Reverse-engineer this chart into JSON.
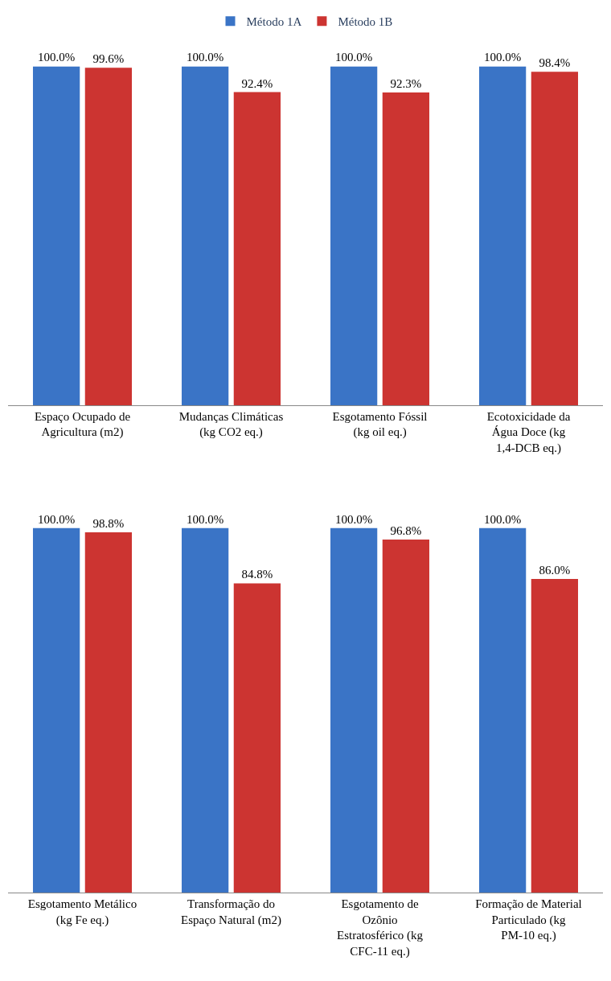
{
  "chart_data": [
    {
      "type": "bar",
      "categories": [
        "Espaço Ocupado de Agricultura (m2)",
        "Mudanças Climáticas (kg CO2 eq.)",
        "Esgotamento Fóssil (kg oil eq.)",
        "Ecotoxicidade da Água Doce (kg 1,4-DCB eq.)"
      ],
      "series": [
        {
          "name": "Método 1A",
          "color": "#3a74c6",
          "values": [
            100.0,
            100.0,
            100.0,
            100.0
          ],
          "value_labels": [
            "100.0%",
            "100.0%",
            "100.0%",
            "100.0%"
          ]
        },
        {
          "name": "Método 1B",
          "color": "#cc3431",
          "values": [
            99.6,
            92.4,
            92.3,
            98.4
          ],
          "value_labels": [
            "99.6%",
            "92.4%",
            "92.3%",
            "98.4%"
          ]
        }
      ],
      "ylim": [
        0,
        100
      ],
      "tick_labels": "x",
      "legend": "top"
    },
    {
      "type": "bar",
      "categories": [
        "Esgotamento Metálico (kg Fe eq.)",
        "Transformação do Espaço Natural (m2)",
        "Esgotamento de Ozônio Estratosférico (kg CFC-11 eq.)",
        "Formação de Material Particulado (kg PM-10 eq.)"
      ],
      "series": [
        {
          "color": "#3a74c6",
          "values": [
            100.0,
            100.0,
            100.0,
            100.0
          ],
          "value_labels": [
            "100.0%",
            "100.0%",
            "100.0%",
            "100.0%"
          ]
        },
        {
          "color": "#cc3431",
          "values": [
            98.8,
            84.8,
            96.8,
            86.0
          ],
          "value_labels": [
            "98.8%",
            "84.8%",
            "96.8%",
            "86.0%"
          ]
        }
      ],
      "ylim": [
        0,
        100
      ],
      "tick_labels": "x"
    }
  ]
}
